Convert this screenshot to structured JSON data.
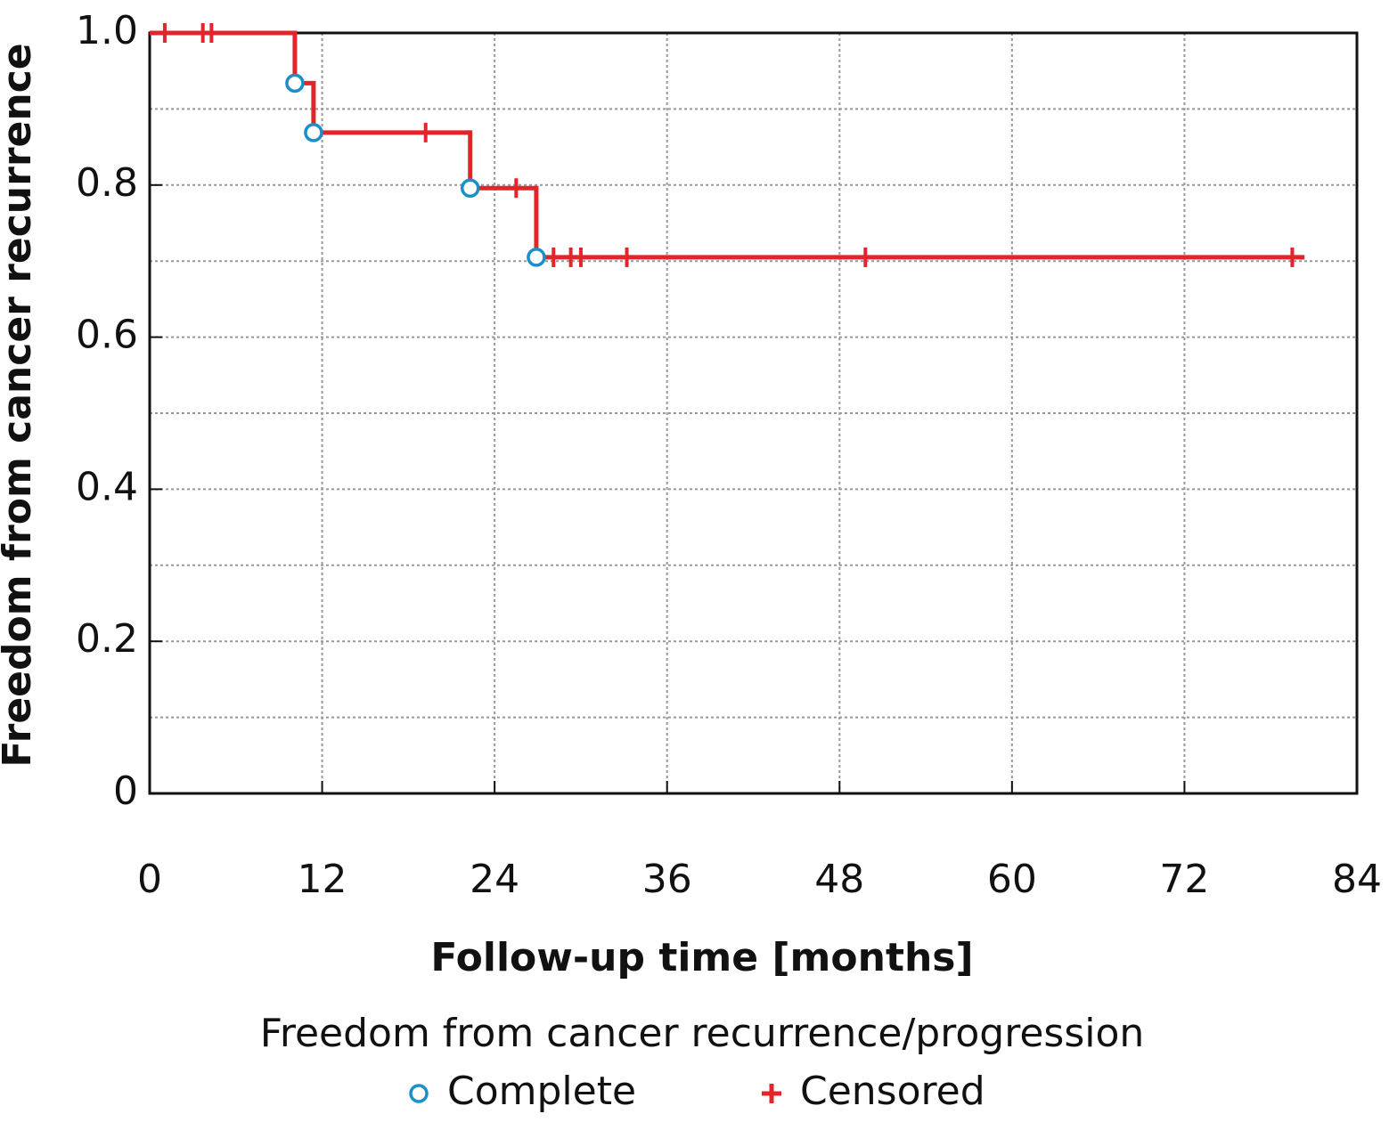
{
  "chart_data": {
    "type": "km",
    "title": "Freedom from cancer recurrence/progression",
    "x_label": "Follow-up time [months]",
    "y_label": "Freedom from cancer recurrence",
    "xlim": [
      0,
      84
    ],
    "ylim": [
      0,
      1
    ],
    "xticks": [
      0,
      12,
      24,
      36,
      48,
      60,
      72,
      84
    ],
    "yticks": [
      0,
      0.2,
      0.4,
      0.6,
      0.8,
      {
        "value": 1,
        "label": "1.0"
      }
    ],
    "ygrid_minor": [
      0.1,
      0.3,
      0.5,
      0.7,
      0.9
    ],
    "grid": true,
    "curve": {
      "color": "#e3242b",
      "x": [
        0,
        10.1,
        11.4,
        22.3,
        26.9,
        80.2
      ],
      "values": [
        1,
        0.934,
        0.869,
        0.796,
        0.705,
        0.705
      ]
    },
    "series": [
      {
        "name": "Complete",
        "color": "#1a8fc9",
        "marker": "circle",
        "x": [
          10.1,
          11.4,
          22.3,
          26.9
        ],
        "values": [
          0.934,
          0.869,
          0.796,
          0.705
        ]
      },
      {
        "name": "Censored",
        "color": "#e3242b",
        "marker": "plus",
        "x": [
          1.05,
          3.7,
          4.3,
          19.2,
          25.5,
          28.1,
          29.3,
          30.0,
          33.2,
          49.8,
          79.5
        ],
        "values": [
          1,
          1,
          1,
          0.869,
          0.796,
          0.705,
          0.705,
          0.705,
          0.705,
          0.705,
          0.705
        ]
      }
    ]
  }
}
